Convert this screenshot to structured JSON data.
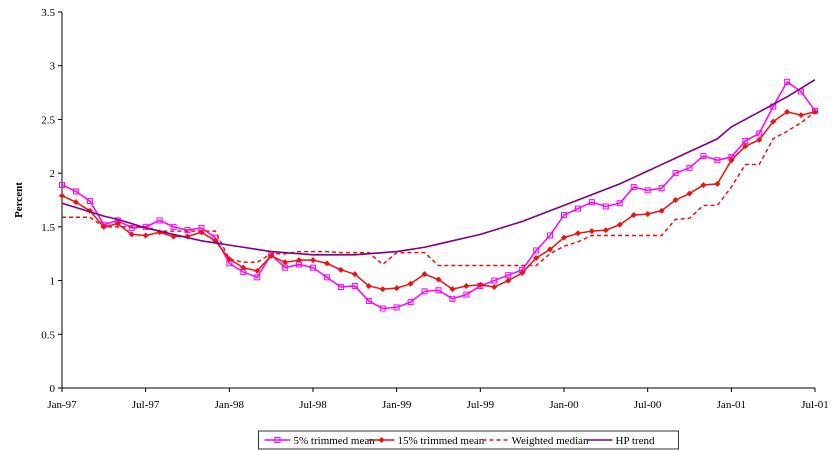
{
  "chart_data": {
    "type": "line",
    "y_label": "Percent",
    "categories": [
      "Jan-97",
      null,
      null,
      null,
      null,
      null,
      "Jul-97",
      null,
      null,
      null,
      null,
      null,
      "Jan-98",
      null,
      null,
      null,
      null,
      null,
      "Jul-98",
      null,
      null,
      null,
      null,
      null,
      "Jan-99",
      null,
      null,
      null,
      null,
      null,
      "Jul-99",
      null,
      null,
      null,
      null,
      null,
      "Jan-00",
      null,
      null,
      null,
      null,
      null,
      "Jul-00",
      null,
      null,
      null,
      null,
      null,
      "Jan-01",
      null,
      null,
      null,
      null,
      null,
      "Jul-01"
    ],
    "ylim": [
      0,
      3.5
    ],
    "yticks": [
      0,
      0.5,
      1,
      1.5,
      2,
      2.5,
      3,
      3.5
    ],
    "grid": false,
    "legend": "bottom",
    "series": [
      {
        "name": "5% trimmed mean",
        "color": "#ff00ff",
        "marker": "square",
        "dash": false,
        "values": [
          1.89,
          1.83,
          1.74,
          1.52,
          1.56,
          1.49,
          1.5,
          1.56,
          1.5,
          1.47,
          1.49,
          1.4,
          1.16,
          1.08,
          1.03,
          1.24,
          1.12,
          1.15,
          1.12,
          1.03,
          0.94,
          0.95,
          0.81,
          0.74,
          0.75,
          0.8,
          0.9,
          0.91,
          0.83,
          0.87,
          0.95,
          1.0,
          1.05,
          1.1,
          1.28,
          1.42,
          1.61,
          1.67,
          1.73,
          1.69,
          1.72,
          1.87,
          1.84,
          1.86,
          2.0,
          2.05,
          2.16,
          2.12,
          2.15,
          2.3,
          2.37,
          2.62,
          2.85,
          2.76,
          2.58
        ]
      },
      {
        "name": "15% trimmed mean",
        "color": "#ee1111",
        "marker": "diamond",
        "dash": false,
        "values": [
          1.79,
          1.73,
          1.65,
          1.5,
          1.53,
          1.43,
          1.42,
          1.45,
          1.41,
          1.41,
          1.45,
          1.37,
          1.2,
          1.12,
          1.09,
          1.23,
          1.17,
          1.19,
          1.19,
          1.16,
          1.1,
          1.06,
          0.95,
          0.92,
          0.93,
          0.97,
          1.06,
          1.01,
          0.92,
          0.95,
          0.96,
          0.94,
          1.0,
          1.07,
          1.21,
          1.29,
          1.4,
          1.44,
          1.46,
          1.47,
          1.52,
          1.61,
          1.62,
          1.65,
          1.75,
          1.81,
          1.89,
          1.9,
          2.12,
          2.25,
          2.31,
          2.48,
          2.57,
          2.54,
          2.57
        ]
      },
      {
        "name": "Weighted median",
        "color": "#ee1111",
        "marker": "none",
        "dash": true,
        "values": [
          1.59,
          1.59,
          1.59,
          1.5,
          1.5,
          1.5,
          1.5,
          1.46,
          1.46,
          1.46,
          1.46,
          1.46,
          1.2,
          1.17,
          1.17,
          1.25,
          1.25,
          1.27,
          1.27,
          1.27,
          1.26,
          1.26,
          1.26,
          1.15,
          1.26,
          1.26,
          1.26,
          1.14,
          1.14,
          1.14,
          1.14,
          1.14,
          1.14,
          1.14,
          1.14,
          1.25,
          1.32,
          1.36,
          1.42,
          1.42,
          1.42,
          1.42,
          1.42,
          1.42,
          1.57,
          1.58,
          1.7,
          1.7,
          1.87,
          2.08,
          2.08,
          2.32,
          2.39,
          2.47,
          2.57
        ]
      },
      {
        "name": "HP trend",
        "color": "#800080",
        "marker": "none",
        "dash": false,
        "values": [
          1.72,
          1.68,
          1.64,
          1.6,
          1.57,
          1.53,
          1.49,
          1.46,
          1.43,
          1.4,
          1.37,
          1.35,
          1.33,
          1.31,
          1.29,
          1.27,
          1.26,
          1.25,
          1.24,
          1.24,
          1.24,
          1.24,
          1.25,
          1.26,
          1.27,
          1.29,
          1.31,
          1.34,
          1.37,
          1.4,
          1.43,
          1.47,
          1.51,
          1.55,
          1.6,
          1.65,
          1.7,
          1.75,
          1.8,
          1.85,
          1.9,
          1.96,
          2.02,
          2.08,
          2.14,
          2.2,
          2.26,
          2.32,
          2.43,
          2.5,
          2.57,
          2.64,
          2.71,
          2.79,
          2.87
        ]
      }
    ]
  }
}
